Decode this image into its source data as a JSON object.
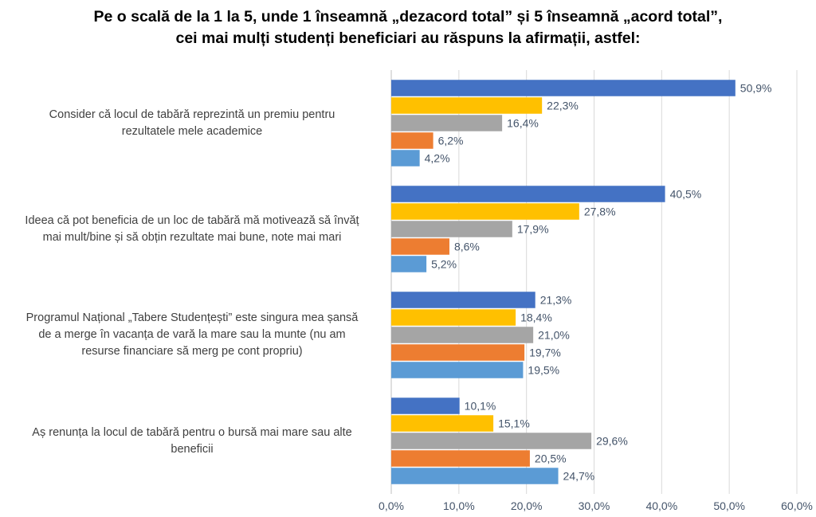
{
  "chart_data": {
    "type": "bar",
    "orientation": "horizontal",
    "title_lines": [
      "Pe o scală de la 1 la 5, unde 1 înseamnă „dezacord total” și 5 înseamnă „acord total”,",
      "cei mai mulți studenți beneficiari au răspuns la afirmații, astfel:"
    ],
    "categories": [
      {
        "lines": [
          "Consider că locul de tabără reprezintă un premiu pentru",
          "rezultatele mele academice"
        ],
        "values": [
          50.9,
          22.3,
          16.4,
          6.2,
          4.2
        ],
        "labels": [
          "50,9%",
          "22,3%",
          "16,4%",
          "6,2%",
          "4,2%"
        ]
      },
      {
        "lines": [
          "Ideea că pot beneficia de un loc de tabără mă motivează să învăț",
          "mai mult/bine și să obțin rezultate mai bune, note mai mari"
        ],
        "values": [
          40.5,
          27.8,
          17.9,
          8.6,
          5.2
        ],
        "labels": [
          "40,5%",
          "27,8%",
          "17,9%",
          "8,6%",
          "5,2%"
        ]
      },
      {
        "lines": [
          "Programul Național „Tabere Studențești” este singura mea șansă",
          "de a merge în vacanța de vară la mare sau la munte (nu am",
          "resurse financiare să merg pe cont propriu)"
        ],
        "values": [
          21.3,
          18.4,
          21.0,
          19.7,
          19.5
        ],
        "labels": [
          "21,3%",
          "18,4%",
          "21,0%",
          "19,7%",
          "19,5%"
        ]
      },
      {
        "lines": [
          "Aș renunța la locul de tabără pentru o bursă mai mare sau alte",
          "beneficii"
        ],
        "values": [
          10.1,
          15.1,
          29.6,
          20.5,
          24.7
        ],
        "labels": [
          "10,1%",
          "15,1%",
          "29,6%",
          "20,5%",
          "24,7%"
        ]
      }
    ],
    "series_colors": [
      "#4472C4",
      "#FFC000",
      "#A5A5A5",
      "#ED7D31",
      "#5B9BD5"
    ],
    "xlim": [
      0,
      60
    ],
    "xticks": [
      0,
      10,
      20,
      30,
      40,
      50,
      60
    ],
    "xtick_labels": [
      "0,0%",
      "10,0%",
      "20,0%",
      "30,0%",
      "40,0%",
      "50,0%",
      "60,0%"
    ],
    "grid": true,
    "legend": "none"
  }
}
